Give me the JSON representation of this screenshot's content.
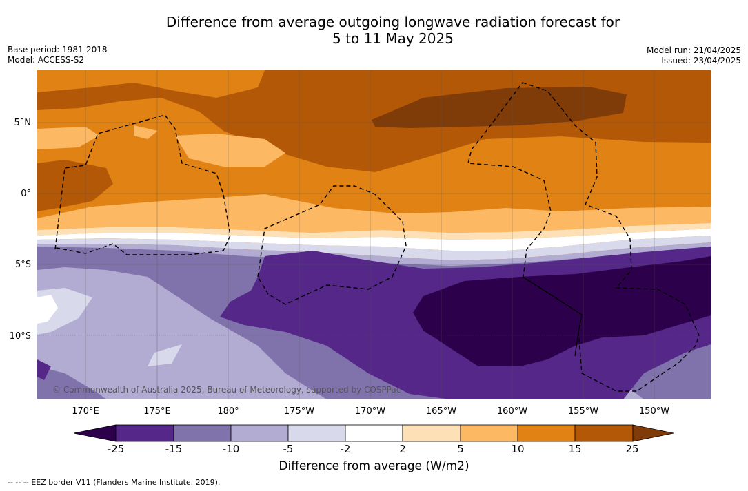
{
  "title": {
    "line1": "Difference from average outgoing longwave radiation forecast for",
    "line2": "5 to 11 May 2025"
  },
  "meta": {
    "base_period": "Base period: 1981-2018",
    "model": "Model: ACCESS-S2",
    "model_run": "Model run: 21/04/2025",
    "issued": "Issued: 23/04/2025"
  },
  "map": {
    "credit": "© Commonwealth of Australia 2025, Bureau of Meteorology, supported by COSPPac",
    "lat_labels": [
      "5°N",
      "0°",
      "5°S",
      "10°S"
    ],
    "lon_labels": [
      "170°E",
      "175°E",
      "180°",
      "175°W",
      "170°W",
      "165°W",
      "160°W",
      "155°W",
      "150°W"
    ],
    "colors": {
      "lt-25": "#2d004b",
      "-25_-15": "#542788",
      "-15_-10": "#8073ac",
      "-10_-5": "#b2abd2",
      "-5_-2": "#d8daeb",
      "-2_2": "#ffffff",
      "2_5": "#fee0b6",
      "5_10": "#fdb863",
      "10_15": "#e08214",
      "15_25": "#b35806",
      "gt25": "#7f3b08"
    }
  },
  "colorbar": {
    "labels": [
      "-25",
      "-15",
      "-10",
      "-5",
      "-2",
      "2",
      "5",
      "10",
      "15",
      "25"
    ],
    "title": "Difference from average (W/m2)"
  },
  "footer": "--  --  -- EEZ border V11 (Flanders Marine Institute, 2019)."
}
